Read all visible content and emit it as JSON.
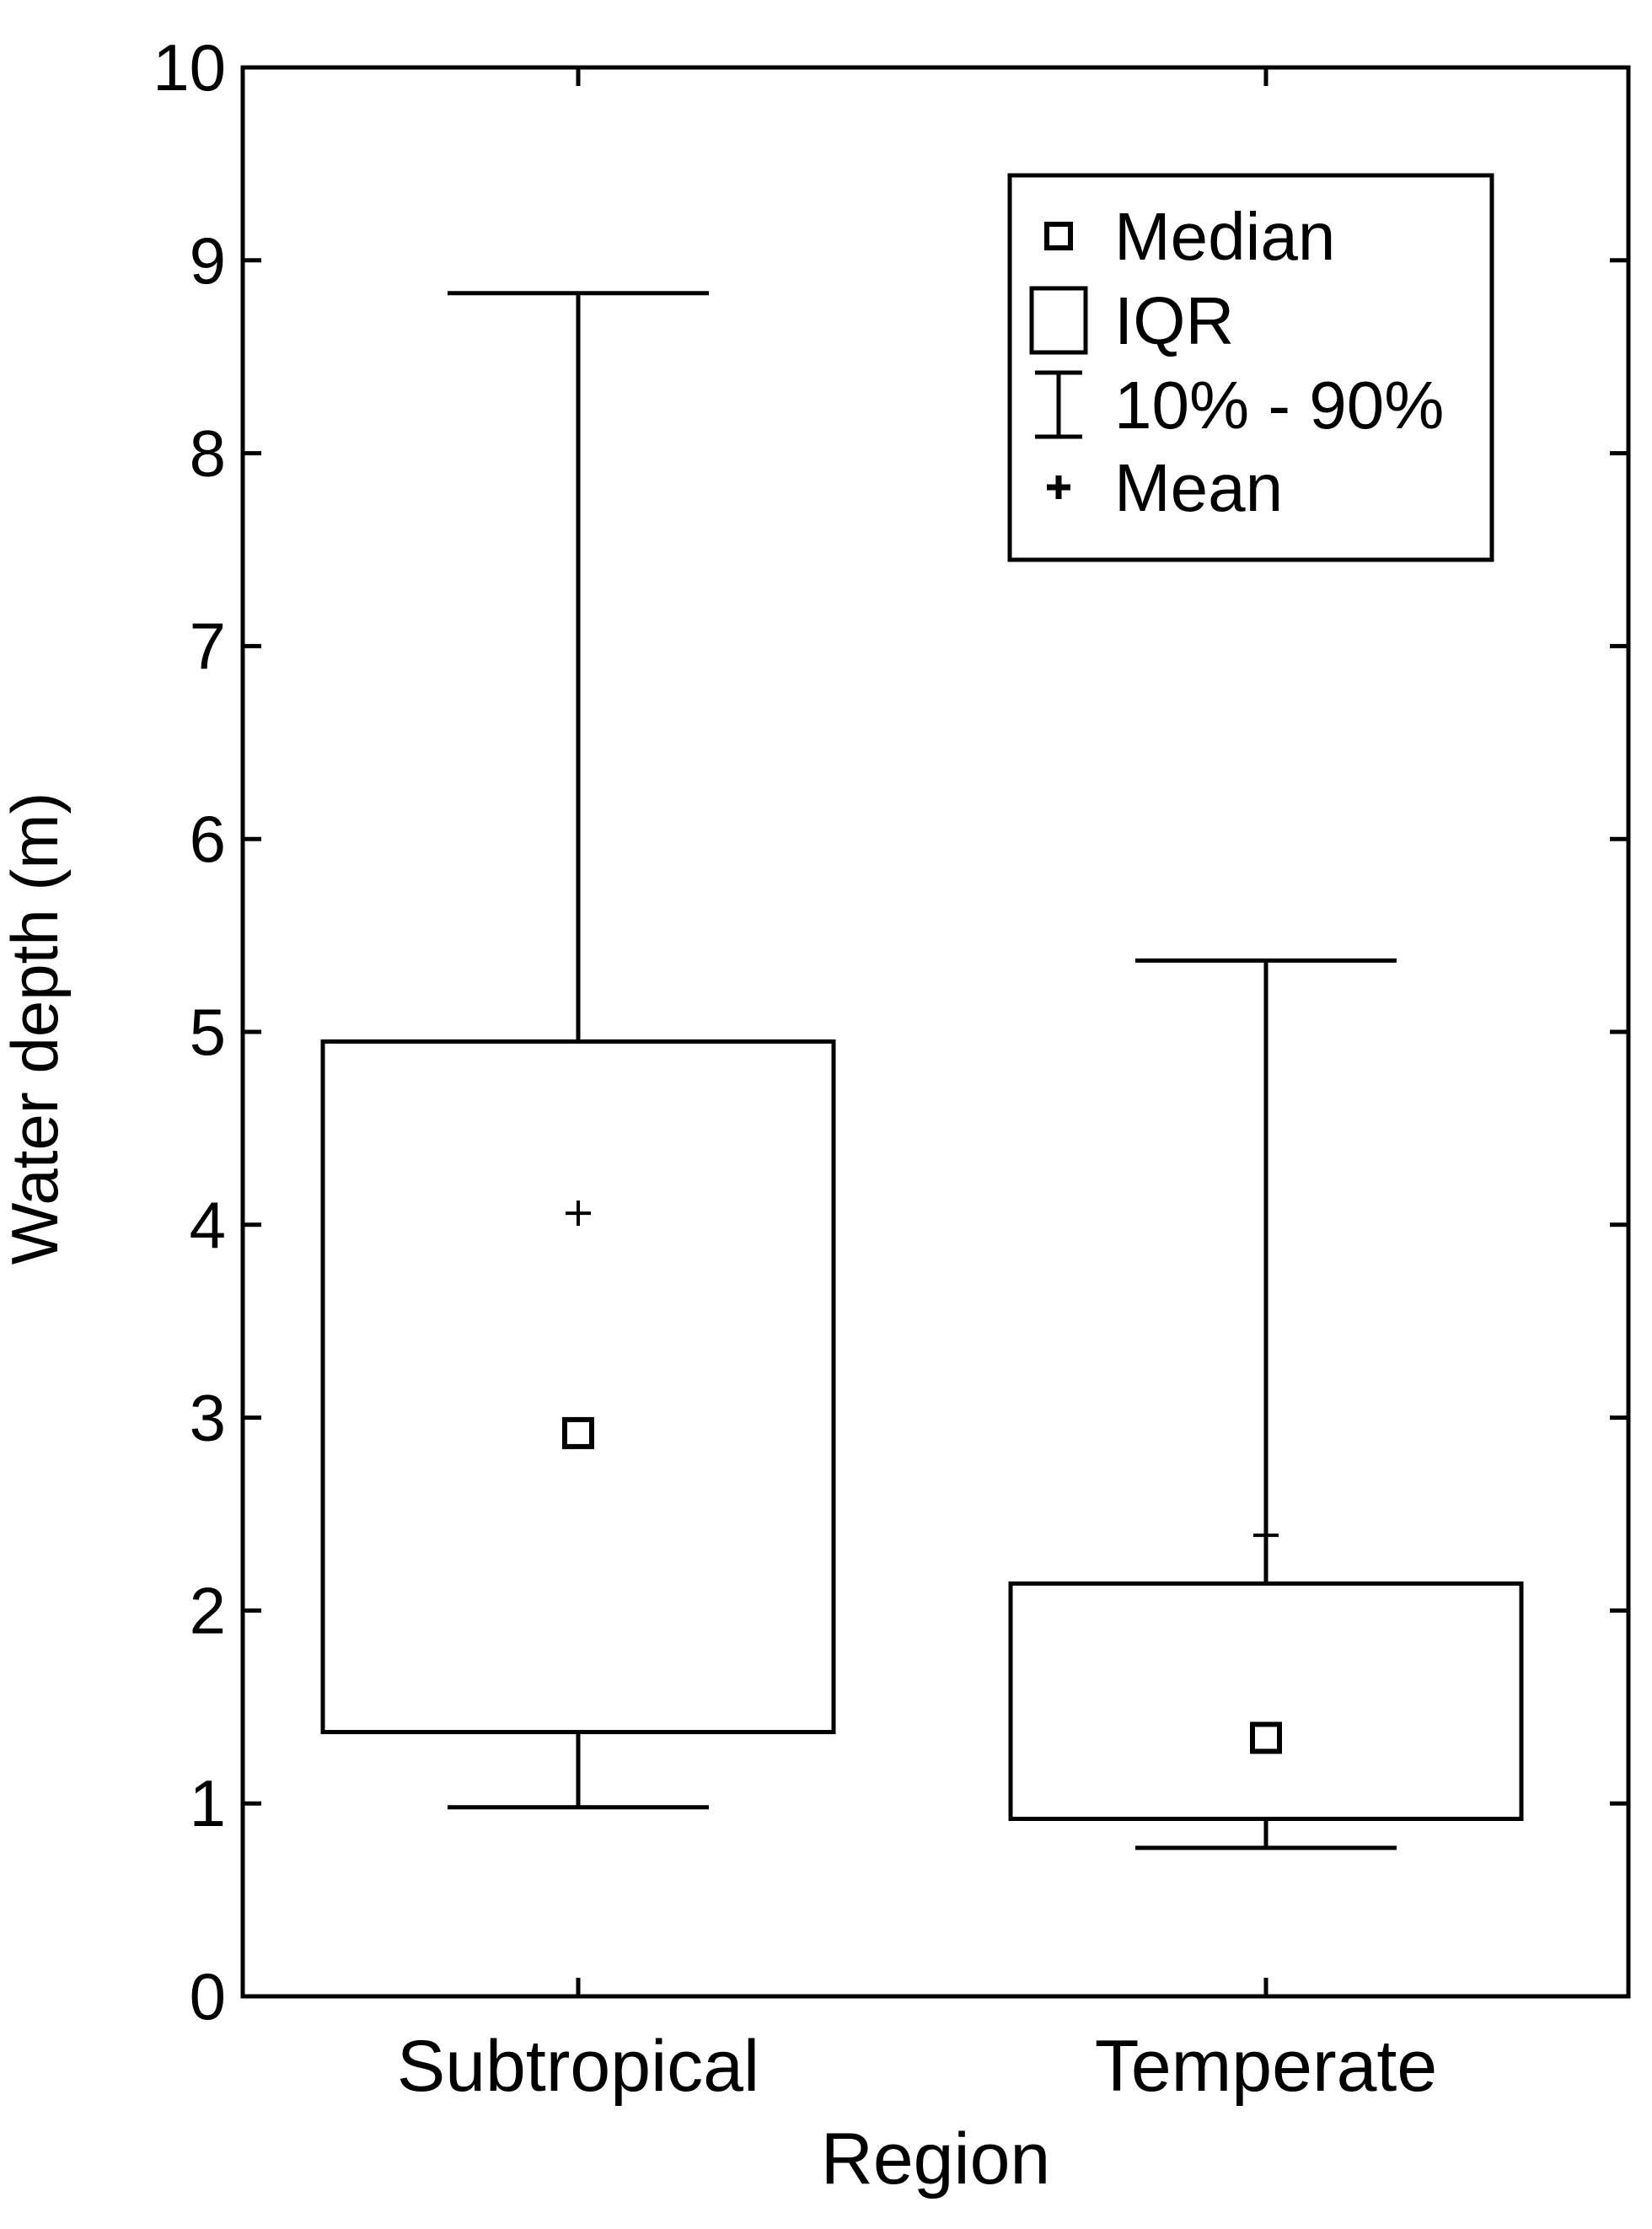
{
  "chart_data": {
    "type": "box",
    "title": "",
    "xlabel": "Region",
    "ylabel": "Water depth (m)",
    "ylim": [
      0,
      10
    ],
    "yticks": [
      0,
      1,
      2,
      3,
      4,
      5,
      6,
      7,
      8,
      9,
      10
    ],
    "categories": [
      "Subtropical",
      "Temperate"
    ],
    "boxes": [
      {
        "category": "Subtropical",
        "p10": 0.98,
        "q1": 1.37,
        "median": 2.92,
        "q3": 4.95,
        "p90": 8.83,
        "mean": 4.06
      },
      {
        "category": "Temperate",
        "p10": 0.77,
        "q1": 0.92,
        "median": 1.34,
        "q3": 2.14,
        "p90": 5.37,
        "mean": 2.39
      }
    ],
    "legend": {
      "position": "top-right",
      "entries": [
        {
          "symbol": "median",
          "label": "Median"
        },
        {
          "symbol": "iqr",
          "label": "IQR"
        },
        {
          "symbol": "whisker",
          "label": "10% - 90%"
        },
        {
          "symbol": "mean",
          "label": "Mean"
        }
      ]
    },
    "grid": false,
    "colors": {
      "stroke": "#000000",
      "background": "#ffffff"
    }
  }
}
